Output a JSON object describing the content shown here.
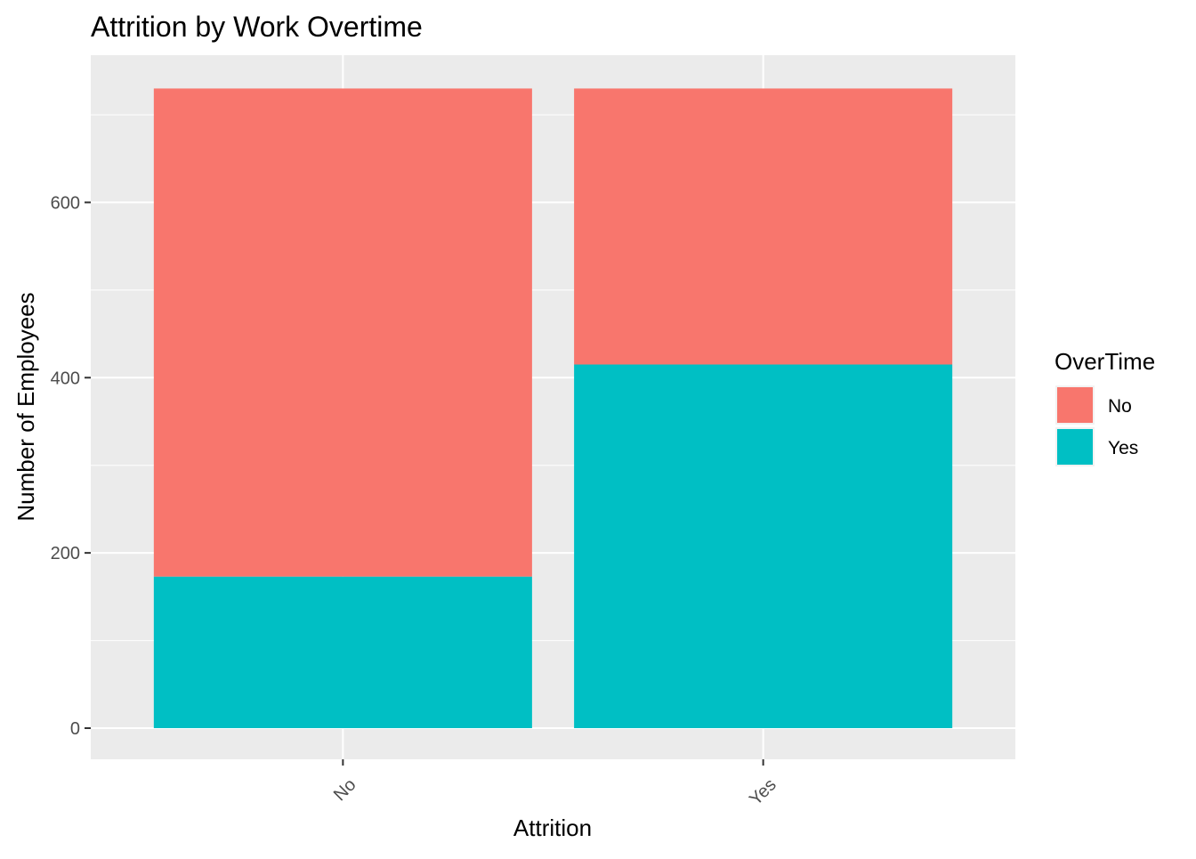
{
  "chart_data": {
    "type": "bar",
    "stacked": true,
    "title": "Attrition by Work Overtime",
    "xlabel": "Attrition",
    "ylabel": "Number of Employees",
    "categories": [
      "No",
      "Yes"
    ],
    "series": [
      {
        "name": "No",
        "color": "#F8766D",
        "values": [
          557,
          315
        ]
      },
      {
        "name": "Yes",
        "color": "#00BFC4",
        "values": [
          173,
          415
        ]
      }
    ],
    "ylim": [
      0,
      730
    ],
    "yticks": [
      0,
      200,
      400,
      600
    ],
    "grid": true,
    "legend": {
      "title": "OverTime",
      "position": "right",
      "entries": [
        "No",
        "Yes"
      ]
    },
    "panel_background": "#EBEBEB"
  }
}
